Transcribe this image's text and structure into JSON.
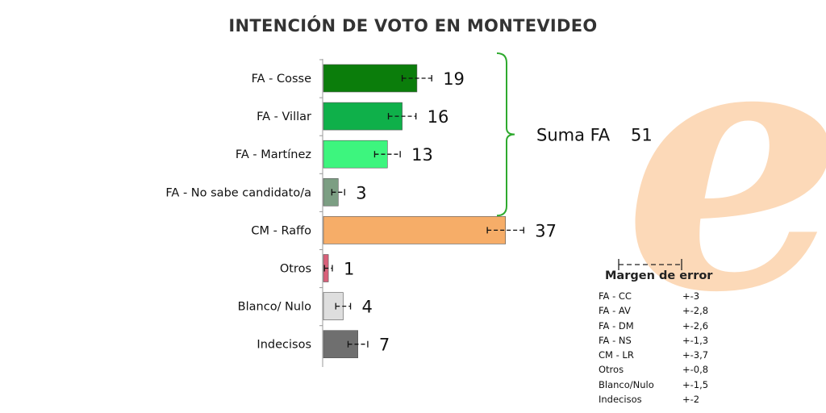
{
  "title": "INTENCIÓN DE VOTO EN MONTEVIDEO",
  "chart_data": {
    "type": "bar",
    "orientation": "horizontal",
    "categories": [
      "FA - Cosse",
      "FA - Villar",
      "FA - Martínez",
      "FA - No sabe candidato/a",
      "CM - Raffo",
      "Otros",
      "Blanco/ Nulo",
      "Indecisos"
    ],
    "values": [
      19,
      16,
      13,
      3,
      37,
      1,
      4,
      7
    ],
    "value_labels": [
      "19",
      "16",
      "13",
      "3",
      "37",
      "1",
      "4",
      "7"
    ],
    "error_margins": [
      3,
      2.8,
      2.6,
      1.3,
      3.7,
      0.8,
      1.5,
      2
    ],
    "colors": [
      "#0b7d0b",
      "#0fb04a",
      "#3df57e",
      "#7c9e83",
      "#f6ad68",
      "#d9607a",
      "#dedede",
      "#6f6f6f"
    ],
    "bracket_group": {
      "label": "Suma FA",
      "value": "51",
      "categories": [
        "FA - Cosse",
        "FA - Villar",
        "FA - Martínez",
        "FA - No sabe candidato/a"
      ],
      "color": "#2eaa2e"
    }
  },
  "margin_of_error": {
    "title": "Margen de error",
    "rows": [
      {
        "label": "FA - CC",
        "value": "+-3"
      },
      {
        "label": "FA - AV",
        "value": "+-2,8"
      },
      {
        "label": "FA - DM",
        "value": "+-2,6"
      },
      {
        "label": "FA - NS",
        "value": "+-1,3"
      },
      {
        "label": "CM - LR",
        "value": "+-3,7"
      },
      {
        "label": "Otros",
        "value": "+-0,8"
      },
      {
        "label": "Blanco/Nulo",
        "value": "+-1,5"
      },
      {
        "label": "Indecisos",
        "value": "+-2"
      }
    ]
  },
  "watermark": {
    "glyph": "e",
    "color": "#fcd9b8"
  }
}
